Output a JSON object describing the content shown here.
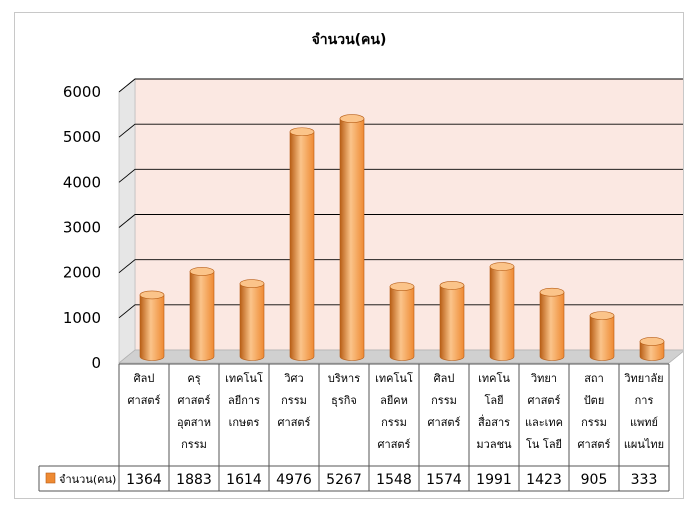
{
  "chart_data": {
    "type": "bar",
    "title": "จำนวน(คน)",
    "categories": [
      [
        "ศิลป",
        "ศาสตร์"
      ],
      [
        "ครุ",
        "ศาสตร์",
        "อุตสาห",
        "กรรม"
      ],
      [
        "เทคโนโ",
        "ลยีการ",
        "เกษตร"
      ],
      [
        "วิศว",
        "กรรม",
        "ศาสตร์"
      ],
      [
        "บริหาร",
        "ธุรกิจ"
      ],
      [
        "เทคโนโ",
        "ลยีคห",
        "กรรม",
        "ศาสตร์"
      ],
      [
        "ศิลป",
        "กรรม",
        "ศาสตร์"
      ],
      [
        "เทคโน",
        "โลยี",
        "สื่อสาร",
        "มวลชน"
      ],
      [
        "วิทยา",
        "ศาสตร์",
        "และเทค",
        "โน โลยี"
      ],
      [
        "สถา",
        "ปัตย",
        "กรรม",
        "ศาสตร์"
      ],
      [
        "วิทยาลัย",
        "การ",
        "แพทย์",
        "แผนไทย"
      ]
    ],
    "series": [
      {
        "name": "จำนวน(คน)",
        "values": [
          1364,
          1883,
          1614,
          4976,
          5267,
          1548,
          1574,
          1991,
          1423,
          905,
          333
        ]
      }
    ],
    "yticks": [
      "0",
      "1000",
      "2000",
      "3000",
      "4000",
      "5000",
      "6000"
    ],
    "ylim": [
      0,
      6000
    ],
    "grid": true,
    "legend": "data-table",
    "colors": {
      "bar_fill": "#ee8a33",
      "bar_light": "#fbc48a",
      "bar_dark": "#b85e16",
      "back_wall": "#fbe8e2",
      "side_wall": "#e6e6e6",
      "floor": "#d0d0d0"
    }
  }
}
